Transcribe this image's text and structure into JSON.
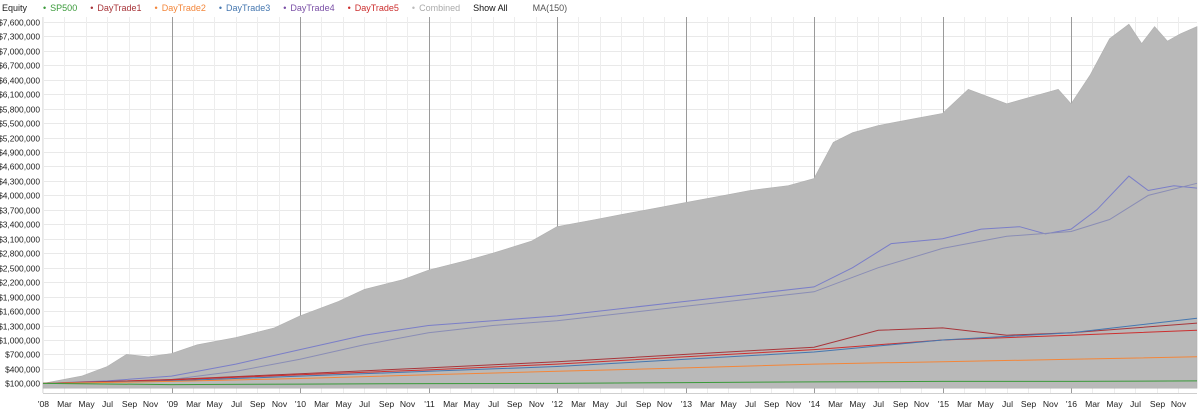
{
  "chart_data": {
    "type": "area",
    "legend_position": "top-left",
    "grid": true,
    "title": "Equity",
    "x_ticks": [
      "'08",
      "Mar",
      "May",
      "Jul",
      "Sep",
      "Nov",
      "'09",
      "Mar",
      "May",
      "Jul",
      "Sep",
      "Nov",
      "'10",
      "Mar",
      "May",
      "Jul",
      "Sep",
      "Nov",
      "'11",
      "Mar",
      "May",
      "Jul",
      "Sep",
      "Nov",
      "'12",
      "Mar",
      "May",
      "Jul",
      "Sep",
      "Nov",
      "'13",
      "Mar",
      "May",
      "Jul",
      "Sep",
      "Nov",
      "'14",
      "Mar",
      "May",
      "Jul",
      "Sep",
      "Nov",
      "'15",
      "Mar",
      "May",
      "Jul",
      "Sep",
      "Nov",
      "'16",
      "Mar",
      "May",
      "Jul",
      "Sep",
      "Nov"
    ],
    "y_ticks": [
      100000,
      400000,
      700000,
      1000000,
      1300000,
      1600000,
      1900000,
      2200000,
      2500000,
      2800000,
      3100000,
      3400000,
      3700000,
      4000000,
      4300000,
      4600000,
      4900000,
      5200000,
      5500000,
      5800000,
      6100000,
      6400000,
      6700000,
      7000000,
      7300000,
      7600000
    ],
    "y_tick_labels": [
      "$100,000",
      "$400,000",
      "$700,000",
      "$1,000,000",
      "$1,300,000",
      "$1,600,000",
      "$1,900,000",
      "$2,200,000",
      "$2,500,000",
      "$2,800,000",
      "$3,100,000",
      "$3,400,000",
      "$3,700,000",
      "$4,000,000",
      "$4,300,000",
      "$4,600,000",
      "$4,900,000",
      "$5,200,000",
      "$5,500,000",
      "$5,800,000",
      "$6,100,000",
      "$6,400,000",
      "$6,700,000",
      "$7,000,000",
      "$7,300,000",
      "$7,600,000"
    ],
    "ylim": [
      -100000,
      7700000
    ],
    "xlim": [
      2008.0,
      2016.98
    ],
    "legend": [
      {
        "name": "SP500",
        "color": "#3a9a3a",
        "active": true
      },
      {
        "name": "DayTrade1",
        "color": "#a8353a",
        "active": true
      },
      {
        "name": "DayTrade2",
        "color": "#f3863a",
        "active": true
      },
      {
        "name": "DayTrade3",
        "color": "#4577b0",
        "active": true
      },
      {
        "name": "DayTrade4",
        "color": "#7a4fa6",
        "active": true
      },
      {
        "name": "DayTrade5",
        "color": "#cc2f2f",
        "active": true
      },
      {
        "name": "Combined",
        "color": "#b5b5b5",
        "active": false
      }
    ],
    "controls": {
      "show_all": "Show All",
      "ma": "MA(150)"
    },
    "series": [
      {
        "name": "Combined",
        "kind": "area",
        "color": "#b9b9b9",
        "x": [
          2008.0,
          2008.3,
          2008.5,
          2008.65,
          2008.82,
          2009.0,
          2009.2,
          2009.5,
          2009.8,
          2010.0,
          2010.3,
          2010.5,
          2010.8,
          2011.0,
          2011.3,
          2011.5,
          2011.8,
          2012.0,
          2012.3,
          2012.5,
          2012.8,
          2013.0,
          2013.3,
          2013.5,
          2013.8,
          2014.0,
          2014.15,
          2014.3,
          2014.5,
          2014.8,
          2015.0,
          2015.2,
          2015.5,
          2015.7,
          2015.9,
          2016.0,
          2016.15,
          2016.3,
          2016.45,
          2016.55,
          2016.65,
          2016.75,
          2016.85,
          2016.98
        ],
        "y": [
          100000,
          250000,
          450000,
          700000,
          650000,
          720000,
          900000,
          1050000,
          1250000,
          1500000,
          1800000,
          2050000,
          2250000,
          2450000,
          2650000,
          2800000,
          3050000,
          3350000,
          3500000,
          3600000,
          3750000,
          3850000,
          4000000,
          4100000,
          4200000,
          4350000,
          5100000,
          5300000,
          5450000,
          5600000,
          5700000,
          6200000,
          5900000,
          6050000,
          6200000,
          5900000,
          6500000,
          7250000,
          7550000,
          7150000,
          7500000,
          7200000,
          7350000,
          7500000
        ]
      },
      {
        "name": "DayTrade4",
        "kind": "line",
        "color": "#7a7ec8",
        "x": [
          2008.0,
          2008.5,
          2009.0,
          2009.5,
          2010.0,
          2010.5,
          2011.0,
          2011.5,
          2012.0,
          2012.5,
          2013.0,
          2013.5,
          2014.0,
          2014.3,
          2014.6,
          2015.0,
          2015.3,
          2015.6,
          2015.8,
          2016.0,
          2016.2,
          2016.45,
          2016.6,
          2016.8,
          2016.98
        ],
        "y": [
          100000,
          150000,
          250000,
          500000,
          800000,
          1100000,
          1300000,
          1400000,
          1500000,
          1650000,
          1800000,
          1950000,
          2100000,
          2500000,
          3000000,
          3100000,
          3300000,
          3350000,
          3200000,
          3300000,
          3700000,
          4400000,
          4100000,
          4200000,
          4150000
        ]
      },
      {
        "name": "DayTrade4 MA(150)",
        "kind": "line",
        "color": "#8a8db5",
        "x": [
          2008.0,
          2008.5,
          2009.0,
          2009.5,
          2010.0,
          2010.5,
          2011.0,
          2011.5,
          2012.0,
          2012.5,
          2013.0,
          2013.5,
          2014.0,
          2014.5,
          2015.0,
          2015.5,
          2016.0,
          2016.3,
          2016.6,
          2016.98
        ],
        "y": [
          100000,
          120000,
          180000,
          350000,
          600000,
          900000,
          1150000,
          1300000,
          1400000,
          1550000,
          1700000,
          1850000,
          2000000,
          2500000,
          2900000,
          3150000,
          3250000,
          3500000,
          4000000,
          4250000
        ]
      },
      {
        "name": "DayTrade1",
        "kind": "line",
        "color": "#a8353a",
        "x": [
          2008.0,
          2009.0,
          2010.0,
          2011.0,
          2012.0,
          2013.0,
          2014.0,
          2014.5,
          2015.0,
          2015.5,
          2016.0,
          2016.5,
          2016.98
        ],
        "y": [
          100000,
          180000,
          300000,
          420000,
          550000,
          700000,
          850000,
          1200000,
          1250000,
          1100000,
          1150000,
          1250000,
          1350000
        ]
      },
      {
        "name": "DayTrade5",
        "kind": "line",
        "color": "#cc2f2f",
        "x": [
          2008.0,
          2009.0,
          2010.0,
          2011.0,
          2012.0,
          2013.0,
          2014.0,
          2015.0,
          2016.0,
          2016.98
        ],
        "y": [
          100000,
          170000,
          280000,
          380000,
          500000,
          650000,
          800000,
          1000000,
          1100000,
          1200000
        ]
      },
      {
        "name": "DayTrade3",
        "kind": "line",
        "color": "#4577b0",
        "x": [
          2008.0,
          2009.0,
          2010.0,
          2011.0,
          2012.0,
          2013.0,
          2014.0,
          2015.0,
          2016.0,
          2016.98
        ],
        "y": [
          100000,
          150000,
          250000,
          350000,
          450000,
          600000,
          750000,
          1000000,
          1150000,
          1450000
        ]
      },
      {
        "name": "DayTrade2",
        "kind": "line",
        "color": "#f3863a",
        "x": [
          2008.0,
          2009.0,
          2010.0,
          2011.0,
          2012.0,
          2013.0,
          2014.0,
          2015.0,
          2016.0,
          2016.98
        ],
        "y": [
          100000,
          140000,
          200000,
          280000,
          350000,
          420000,
          500000,
          550000,
          600000,
          650000
        ]
      },
      {
        "name": "SP500",
        "kind": "line",
        "color": "#3a9a3a",
        "x": [
          2008.0,
          2009.0,
          2010.0,
          2011.0,
          2012.0,
          2013.0,
          2014.0,
          2015.0,
          2016.0,
          2016.98
        ],
        "y": [
          100000,
          75000,
          85000,
          95000,
          100000,
          115000,
          130000,
          140000,
          140000,
          150000
        ]
      }
    ]
  }
}
